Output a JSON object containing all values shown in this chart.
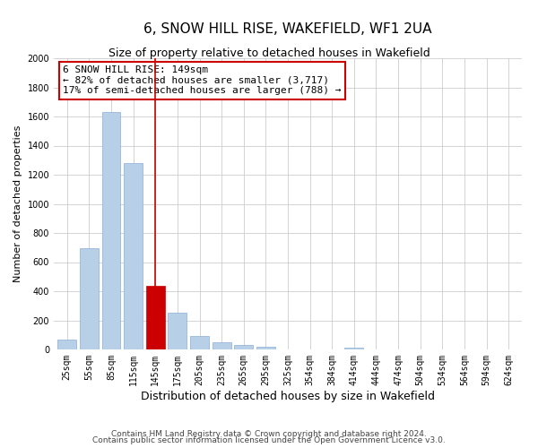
{
  "title": "6, SNOW HILL RISE, WAKEFIELD, WF1 2UA",
  "subtitle": "Size of property relative to detached houses in Wakefield",
  "xlabel": "Distribution of detached houses by size in Wakefield",
  "ylabel": "Number of detached properties",
  "categories": [
    "25sqm",
    "55sqm",
    "85sqm",
    "115sqm",
    "145sqm",
    "175sqm",
    "205sqm",
    "235sqm",
    "265sqm",
    "295sqm",
    "325sqm",
    "354sqm",
    "384sqm",
    "414sqm",
    "444sqm",
    "474sqm",
    "504sqm",
    "534sqm",
    "564sqm",
    "594sqm",
    "624sqm"
  ],
  "values": [
    65,
    695,
    1630,
    1280,
    435,
    255,
    90,
    52,
    30,
    20,
    0,
    0,
    0,
    12,
    0,
    0,
    0,
    0,
    0,
    0,
    0
  ],
  "bar_color": "#b8cfe8",
  "bar_edge_color": "#8aafd4",
  "highlight_bar_index": 4,
  "highlight_color": "#cc0000",
  "highlight_edge_color": "#cc0000",
  "vline_color": "#cc0000",
  "annotation_title": "6 SNOW HILL RISE: 149sqm",
  "annotation_line1": "← 82% of detached houses are smaller (3,717)",
  "annotation_line2": "17% of semi-detached houses are larger (788) →",
  "annotation_box_facecolor": "#ffffff",
  "annotation_box_edgecolor": "#cc0000",
  "ylim": [
    0,
    2000
  ],
  "yticks": [
    0,
    200,
    400,
    600,
    800,
    1000,
    1200,
    1400,
    1600,
    1800,
    2000
  ],
  "footer1": "Contains HM Land Registry data © Crown copyright and database right 2024.",
  "footer2": "Contains public sector information licensed under the Open Government Licence v3.0.",
  "bg_color": "#ffffff",
  "grid_color": "#cccccc",
  "title_fontsize": 11,
  "subtitle_fontsize": 9,
  "ylabel_fontsize": 8,
  "xlabel_fontsize": 9,
  "tick_fontsize": 7,
  "annotation_fontsize": 8,
  "footer_fontsize": 6.5
}
